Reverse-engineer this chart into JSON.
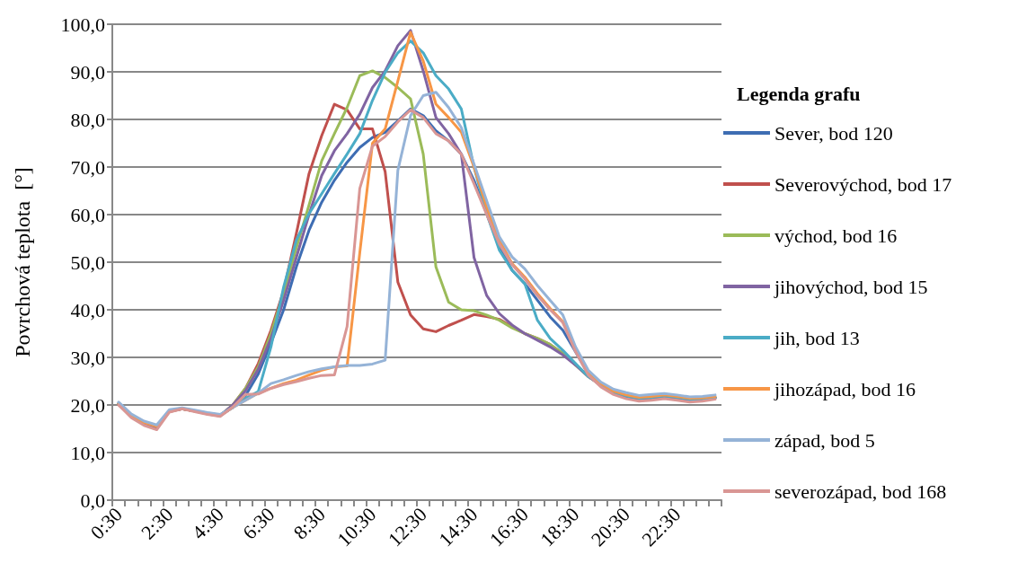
{
  "chart_data": {
    "type": "line",
    "ylabel": "Povrchová teplota  [°]",
    "legend_title": "Legenda grafu",
    "legend": "right",
    "grid": "y",
    "marker": "none",
    "line_style": "solid",
    "categories": [
      "0:30",
      null,
      null,
      null,
      "2:30",
      null,
      null,
      null,
      "4:30",
      null,
      null,
      null,
      "6:30",
      null,
      null,
      null,
      "8:30",
      null,
      null,
      null,
      "10:30",
      null,
      null,
      null,
      "12:30",
      null,
      null,
      null,
      "14:30",
      null,
      null,
      null,
      "16:30",
      null,
      null,
      null,
      "18:30",
      null,
      null,
      null,
      "20:30",
      null,
      null,
      null,
      "22:30",
      null,
      null,
      null
    ],
    "ylim": [
      0,
      100
    ],
    "yticks": [
      {
        "value": 0,
        "label": "0,0"
      },
      {
        "value": 10,
        "label": "10,0"
      },
      {
        "value": 20,
        "label": "20,0"
      },
      {
        "value": 30,
        "label": "30,0"
      },
      {
        "value": 40,
        "label": "40,0"
      },
      {
        "value": 50,
        "label": "50,0"
      },
      {
        "value": 60,
        "label": "60,0"
      },
      {
        "value": 70,
        "label": "70,0"
      },
      {
        "value": 80,
        "label": "80,0"
      },
      {
        "value": 90,
        "label": "90,0"
      },
      {
        "value": 100,
        "label": "100,0"
      }
    ],
    "series": [
      {
        "name": "Sever, bod 120",
        "color": "#3e6db3",
        "values": [
          20.3,
          17.8,
          16.3,
          15.5,
          18.7,
          19.2,
          18.7,
          18.2,
          17.8,
          19.5,
          22,
          26.5,
          33,
          40,
          49,
          56.7,
          62.6,
          67.2,
          71,
          74.1,
          76.2,
          77.3,
          79.7,
          82.2,
          80.8,
          77.6,
          75.5,
          72.7,
          67.2,
          60.2,
          53.2,
          48.3,
          45.5,
          42,
          38.5,
          35.7,
          31.2,
          26.5,
          24.5,
          22.8,
          22,
          21.4,
          21.6,
          21.9,
          21.6,
          21.2,
          21.3,
          21.6
        ]
      },
      {
        "name": "Severovýchod, bod 17",
        "color": "#c0504d",
        "values": [
          20,
          17.6,
          16,
          15.2,
          18.6,
          19.2,
          18.7,
          18.1,
          17.7,
          20,
          23.5,
          28.7,
          35.7,
          44,
          56,
          68.6,
          76.6,
          83.2,
          82,
          78,
          78,
          69,
          45.8,
          38.9,
          36,
          35.4,
          36.7,
          37.8,
          39,
          38.6,
          38,
          36.4,
          35,
          34,
          32.7,
          30.8,
          28.4,
          26,
          24.2,
          22.6,
          21.8,
          21.3,
          21.5,
          21.8,
          21.5,
          21.1,
          21.2,
          21.5
        ]
      },
      {
        "name": "východ, bod 16",
        "color": "#9bbb59",
        "values": [
          20.2,
          17.7,
          16.2,
          15.4,
          18.7,
          19.2,
          18.7,
          18.2,
          17.8,
          20,
          23.5,
          28,
          35,
          43.5,
          53,
          62,
          71.3,
          77,
          82.5,
          89.2,
          90.2,
          88.8,
          86.7,
          84.3,
          72.7,
          49,
          41.6,
          40,
          39.8,
          38.9,
          37.8,
          36.2,
          35,
          34,
          32.7,
          30.8,
          28.4,
          26,
          24.2,
          22.6,
          21.8,
          21.3,
          21.5,
          21.8,
          21.5,
          21.1,
          21.2,
          21.5
        ]
      },
      {
        "name": "jihovýchod, bod 15",
        "color": "#8064a2",
        "values": [
          20.2,
          17.7,
          16.2,
          15.4,
          18.7,
          19.2,
          18.7,
          18.2,
          17.8,
          20,
          23,
          27.5,
          34,
          42,
          51,
          60,
          68.2,
          73.4,
          77,
          81.1,
          86.7,
          90.2,
          95.5,
          98.7,
          90.2,
          80.4,
          77,
          72.7,
          51,
          43,
          39.2,
          36.8,
          35,
          33.6,
          32.2,
          30.5,
          28.4,
          26,
          24.2,
          22.6,
          21.8,
          21.3,
          21.5,
          21.8,
          21.5,
          21.1,
          21.2,
          21.5
        ]
      },
      {
        "name": "jih, bod 13",
        "color": "#4bacc6",
        "values": [
          20.4,
          17.9,
          16.4,
          15.6,
          18.8,
          19.3,
          18.8,
          18.3,
          17.9,
          19.5,
          21.4,
          22.8,
          32.2,
          44.8,
          54.6,
          60.2,
          64.4,
          68.6,
          72.7,
          77,
          84,
          89.9,
          94,
          96.5,
          94,
          89.2,
          86.4,
          82.2,
          70,
          60.2,
          52.5,
          48.3,
          45.5,
          37.8,
          34,
          31.5,
          28.7,
          26,
          24.3,
          22.7,
          21.9,
          21.4,
          21.6,
          21.9,
          21.6,
          21.2,
          21.3,
          21.6
        ]
      },
      {
        "name": "jihozápad, bod 16",
        "color": "#f79646",
        "values": [
          20.3,
          17.8,
          16.3,
          15.5,
          18.7,
          19.2,
          18.7,
          18.2,
          17.8,
          19.5,
          21,
          22.5,
          23.5,
          24.5,
          25.2,
          26.3,
          27.3,
          28,
          28.2,
          52,
          75,
          78,
          88.1,
          98.3,
          92.3,
          83.2,
          80.4,
          77.3,
          70,
          61.6,
          54.6,
          49.7,
          46.9,
          43.4,
          40.3,
          37.5,
          31.5,
          26.5,
          24.5,
          22.9,
          22.1,
          21.6,
          21.8,
          22.1,
          21.8,
          21.4,
          21.5,
          21.8
        ]
      },
      {
        "name": "západ, bod 5",
        "color": "#95b3d7",
        "values": [
          20.6,
          18.1,
          16.6,
          15.8,
          19,
          19.4,
          18.9,
          18.4,
          18,
          19.5,
          21,
          22.5,
          24.5,
          25.3,
          26.2,
          27,
          27.6,
          28,
          28.3,
          28.3,
          28.6,
          29.4,
          69.3,
          80.8,
          85,
          85.7,
          82.5,
          78.3,
          70.6,
          62.9,
          55.3,
          51.1,
          48.6,
          45.1,
          42,
          38.9,
          32.2,
          27.3,
          24.8,
          23.3,
          22.6,
          22,
          22.2,
          22.4,
          22.1,
          21.7,
          21.8,
          22.1
        ]
      },
      {
        "name": "severozápad, bod 168",
        "color": "#d99694",
        "values": [
          20,
          17.3,
          15.7,
          14.8,
          18.5,
          19.2,
          18.6,
          18,
          17.6,
          19.6,
          22.2,
          22.3,
          23.5,
          24.3,
          24.9,
          25.6,
          26.2,
          26.3,
          36.5,
          65.5,
          74.4,
          76.4,
          79.5,
          82,
          80.4,
          77,
          75.5,
          72.7,
          66.5,
          60,
          53.8,
          49.5,
          46.5,
          43,
          40,
          37.3,
          31.2,
          26.3,
          23.8,
          22.2,
          21.3,
          20.8,
          21,
          21.3,
          21,
          20.6,
          20.8,
          21.2
        ]
      }
    ]
  }
}
